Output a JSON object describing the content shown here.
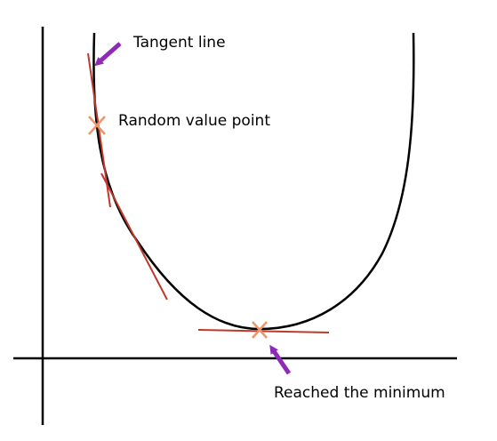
{
  "labels": {
    "tangent_line": "Tangent line",
    "random_value_point": "Random value point",
    "reached_minimum": "Reached the minimum"
  },
  "colors": {
    "axis": "#000000",
    "curve": "#000000",
    "tangent": "#c0392b",
    "point_marker": "#f0956a",
    "arrow": "#8e2ab8",
    "text": "#000000"
  },
  "icons": {
    "point_marker": "cross-marker",
    "pointer": "arrow"
  }
}
